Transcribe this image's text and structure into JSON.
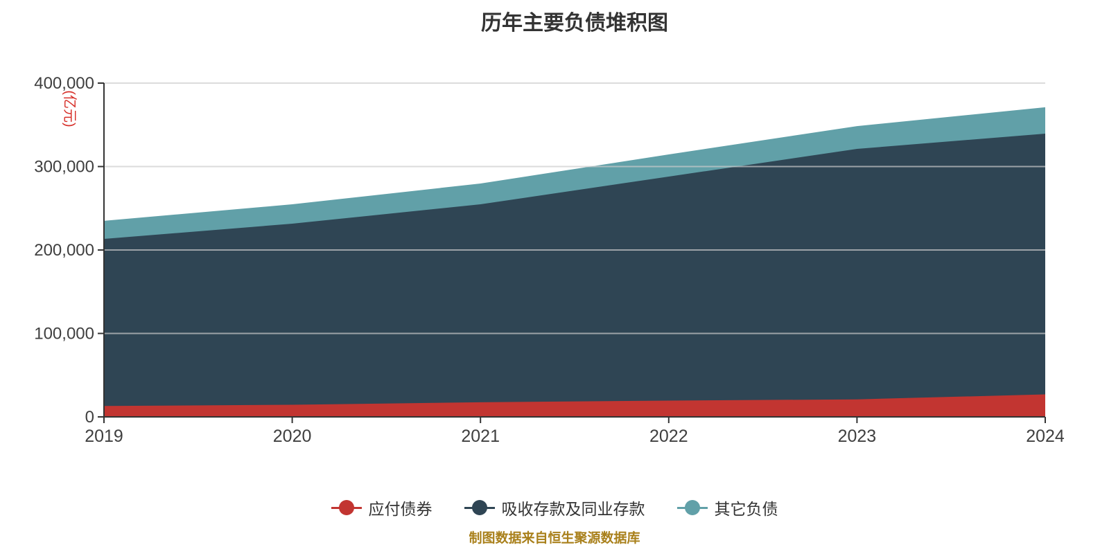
{
  "title": "历年主要负债堆积图",
  "source_note": "制图数据来自恒生聚源数据库",
  "y_axis": {
    "unit": "(亿元)",
    "tick_labels": [
      "0",
      "100,000",
      "200,000",
      "300,000",
      "400,000"
    ],
    "min": 0,
    "max": 400000
  },
  "x_axis": {
    "labels": [
      "2019",
      "2020",
      "2021",
      "2022",
      "2023",
      "2024"
    ]
  },
  "legend": [
    {
      "label": "应付债券",
      "color": "#c23531"
    },
    {
      "label": "吸收存款及同业存款",
      "color": "#2f4554"
    },
    {
      "label": "其它负债",
      "color": "#61a0a8"
    }
  ],
  "colors": {
    "background": "#ffffff",
    "title_text": "#333333",
    "tick_label_text": "#3f3f3f",
    "axis_line": "#333333",
    "gridline": "#cccccc",
    "unit_label_text": "#d7302a",
    "source_note_text": "#a9801b"
  },
  "chart_data": {
    "type": "area",
    "stacked": true,
    "title": "历年主要负债堆积图",
    "x": [
      2019,
      2020,
      2021,
      2022,
      2023,
      2024
    ],
    "series": [
      {
        "name": "应付债券",
        "color": "#c23531",
        "values": [
          13000,
          14500,
          17500,
          19500,
          21000,
          27000
        ]
      },
      {
        "name": "吸收存款及同业存款",
        "color": "#2f4554",
        "values": [
          200300,
          217000,
          237300,
          268500,
          300200,
          312400
        ]
      },
      {
        "name": "其它负债",
        "color": "#61a0a8",
        "values": [
          21600,
          23300,
          24900,
          26500,
          27300,
          31600
        ]
      }
    ],
    "stack_totals": [
      234900,
      254800,
      279700,
      314500,
      348500,
      371000
    ],
    "ylabel_unit": "(亿元)",
    "ylim": [
      0,
      400000
    ],
    "ytick_step": 100000,
    "grid": true,
    "legend_position": "bottom"
  }
}
